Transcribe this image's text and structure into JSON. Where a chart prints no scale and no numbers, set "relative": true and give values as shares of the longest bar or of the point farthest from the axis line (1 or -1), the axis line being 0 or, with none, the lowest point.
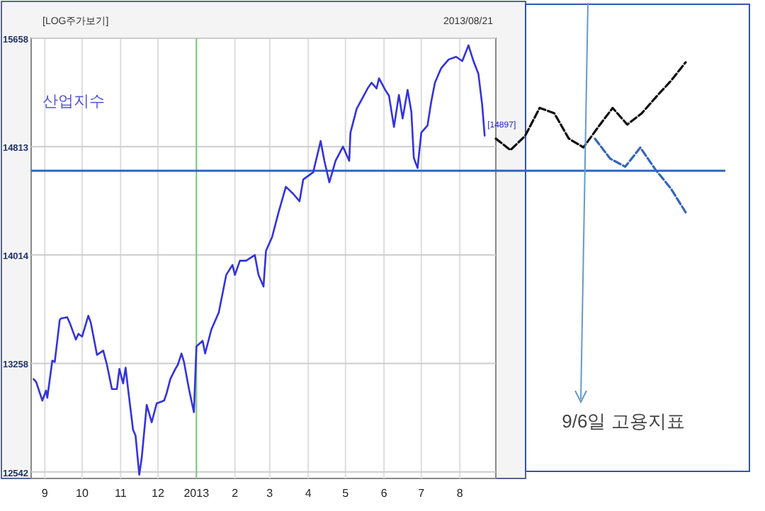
{
  "chart_data": [
    {
      "type": "line",
      "title": "산업지수",
      "x": [
        "2012-08-23",
        "2012-08-25",
        "2012-08-30",
        "2012-09-02",
        "2012-09-03",
        "2012-09-07",
        "2012-09-09",
        "2012-09-13",
        "2012-09-14",
        "2012-09-19",
        "2012-09-21",
        "2012-09-26",
        "2012-09-28",
        "2012-10-01",
        "2012-10-06",
        "2012-10-08",
        "2012-10-13",
        "2012-10-18",
        "2012-10-21",
        "2012-10-25",
        "2012-10-29",
        "2012-10-31",
        "2012-11-03",
        "2012-11-05",
        "2012-11-07",
        "2012-11-11",
        "2012-11-13",
        "2012-11-16",
        "2012-11-18",
        "2012-11-22",
        "2012-11-26",
        "2012-11-30",
        "2012-12-06",
        "2012-12-08",
        "2012-12-11",
        "2012-12-15",
        "2012-12-17",
        "2012-12-20",
        "2012-12-22",
        "2012-12-26",
        "2012-12-30",
        "2013-01-01",
        "2013-01-06",
        "2013-01-08",
        "2013-01-13",
        "2013-01-19",
        "2013-01-25",
        "2013-01-30",
        "2013-02-01",
        "2013-02-05",
        "2013-02-10",
        "2013-02-17",
        "2013-02-20",
        "2013-02-24",
        "2013-02-26",
        "2013-03-03",
        "2013-03-08",
        "2013-03-14",
        "2013-03-20",
        "2013-03-25",
        "2013-03-28",
        "2013-04-05",
        "2013-04-11",
        "2013-04-14",
        "2013-04-18",
        "2013-04-23",
        "2013-04-29",
        "2013-05-04",
        "2013-05-05",
        "2013-05-10",
        "2013-05-19",
        "2013-05-22",
        "2013-05-26",
        "2013-05-28",
        "2013-06-02",
        "2013-06-05",
        "2013-06-09",
        "2013-06-13",
        "2013-06-16",
        "2013-06-20",
        "2013-06-23",
        "2013-06-25",
        "2013-06-28",
        "2013-07-01",
        "2013-07-06",
        "2013-07-09",
        "2013-07-12",
        "2013-07-17",
        "2013-07-23",
        "2013-07-29",
        "2013-08-03",
        "2013-08-08",
        "2013-08-12",
        "2013-08-16",
        "2013-08-19",
        "2013-08-21"
      ],
      "series": [
        {
          "color": "#3333dd",
          "values": [
            13152,
            13133,
            13008,
            13075,
            13027,
            13277,
            13268,
            13556,
            13566,
            13575,
            13537,
            13421,
            13460,
            13441,
            13585,
            13537,
            13316,
            13345,
            13248,
            13085,
            13085,
            13220,
            13123,
            13229,
            13085,
            12815,
            12778,
            12524,
            12633,
            12979,
            12864,
            12989,
            13008,
            13056,
            13152,
            13220,
            13248,
            13325,
            13268,
            13085,
            12931,
            13373,
            13412,
            13325,
            13489,
            13608,
            13872,
            13943,
            13872,
            13973,
            13973,
            14014,
            13872,
            13790,
            14044,
            14146,
            14319,
            14512,
            14459,
            14405,
            14566,
            14620,
            14856,
            14706,
            14545,
            14706,
            14813,
            14706,
            14920,
            15103,
            15264,
            15306,
            15261,
            15340,
            15249,
            15204,
            14963,
            15210,
            15028,
            15249,
            15081,
            14727,
            14652,
            14920,
            14974,
            15157,
            15306,
            15420,
            15488,
            15510,
            15476,
            15601,
            15476,
            15374,
            15135,
            14897
          ]
        }
      ],
      "xlim": [
        "2012-08-21",
        "2013-08-30"
      ],
      "xticks": [
        {
          "value": "2012-09-01",
          "label": "9"
        },
        {
          "value": "2012-10-01",
          "label": "10"
        },
        {
          "value": "2012-11-01",
          "label": "11"
        },
        {
          "value": "2012-12-01",
          "label": "12"
        },
        {
          "value": "2013-01-01",
          "label": "2013"
        },
        {
          "value": "2013-02-01",
          "label": "2"
        },
        {
          "value": "2013-03-01",
          "label": "3"
        },
        {
          "value": "2013-04-01",
          "label": "4"
        },
        {
          "value": "2013-05-01",
          "label": "5"
        },
        {
          "value": "2013-06-01",
          "label": "6"
        },
        {
          "value": "2013-07-01",
          "label": "7"
        },
        {
          "value": "2013-08-01",
          "label": "8"
        }
      ],
      "ylim": [
        12500,
        15658
      ],
      "yticks": [
        12542,
        13258,
        14014,
        14813,
        15658
      ],
      "log": true,
      "grid": true,
      "ref_lines": [
        {
          "axis": "x",
          "value": "2013-01-01",
          "color": "#77cc77"
        },
        {
          "axis": "y",
          "value": 14631,
          "color": "#3366bb"
        }
      ],
      "annotations": [
        "[LOG주가보기]",
        "2013/08/21",
        {
          "text": "[14897]",
          "x": "2013-08-21",
          "y": 14897
        }
      ]
    },
    {
      "type": "line",
      "relative": true,
      "line_style": "dashed",
      "categories": [
        null,
        null,
        null,
        null,
        null,
        null,
        null,
        null,
        null,
        null,
        null,
        null,
        null,
        null
      ],
      "series": [
        {
          "color": "#111111",
          "values": [
            0.13,
            0,
            0.16,
            0.48,
            0.42,
            0.13,
            0.03,
            0.26,
            0.48,
            0.29,
            0.42,
            0.61,
            0.79,
            1
          ]
        }
      ],
      "annotations": [
        "9/6일 고용지표"
      ]
    },
    {
      "type": "line",
      "relative": true,
      "line_style": "dashed",
      "categories": [
        null,
        null,
        null,
        null,
        null,
        null,
        null
      ],
      "series": [
        {
          "color": "#3366bb",
          "values": [
            1,
            0.73,
            0.62,
            0.88,
            0.58,
            0.33,
            0
          ]
        }
      ]
    }
  ]
}
